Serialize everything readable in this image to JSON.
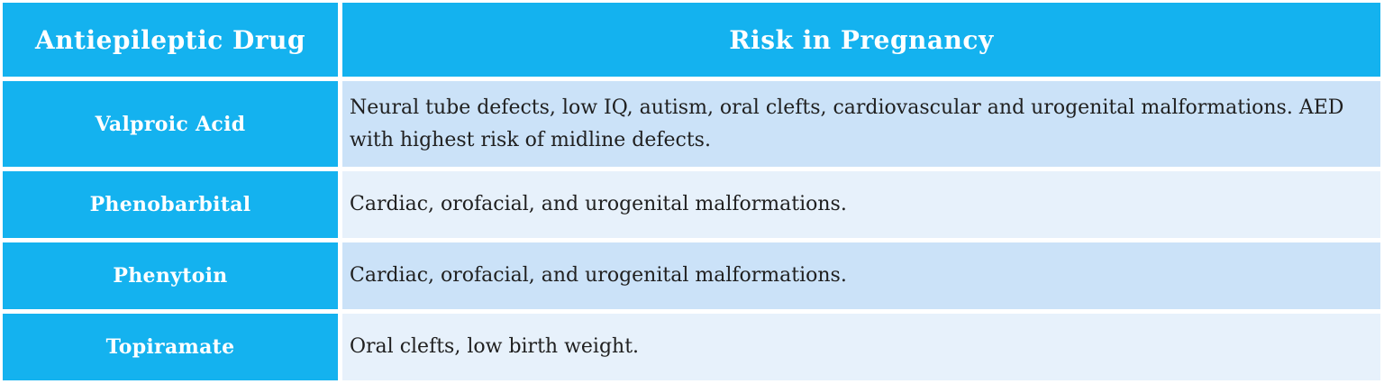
{
  "table": {
    "colors": {
      "accent": "#14B2EF",
      "row_shade_a": "#CBE2F8",
      "row_shade_b": "#E7F1FB",
      "header_text": "#FFFFFF",
      "body_text": "#202020",
      "grid_gap": "#FFFFFF"
    },
    "headers": {
      "drug": "Antiepileptic Drug",
      "risk": "Risk in Pregnancy"
    },
    "rows": [
      {
        "drug": "Valproic Acid",
        "risk": "Neural tube defects, low IQ, autism, oral clefts, cardiovascular and urogenital malformations. AED with highest risk of midline defects."
      },
      {
        "drug": "Phenobarbital",
        "risk": "Cardiac, orofacial, and urogenital malformations."
      },
      {
        "drug": "Phenytoin",
        "risk": "Cardiac, orofacial, and urogenital malformations."
      },
      {
        "drug": "Topiramate",
        "risk": "Oral clefts, low birth weight."
      }
    ]
  },
  "chart_data": {
    "type": "table",
    "columns": [
      "Antiepileptic Drug",
      "Risk in Pregnancy"
    ],
    "rows": [
      [
        "Valproic Acid",
        "Neural tube defects, low IQ, autism, oral clefts, cardiovascular and urogenital malformations. AED with highest risk of midline defects."
      ],
      [
        "Phenobarbital",
        "Cardiac, orofacial, and urogenital malformations."
      ],
      [
        "Phenytoin",
        "Cardiac, orofacial, and urogenital malformations."
      ],
      [
        "Topiramate",
        "Oral clefts, low birth weight."
      ]
    ]
  }
}
